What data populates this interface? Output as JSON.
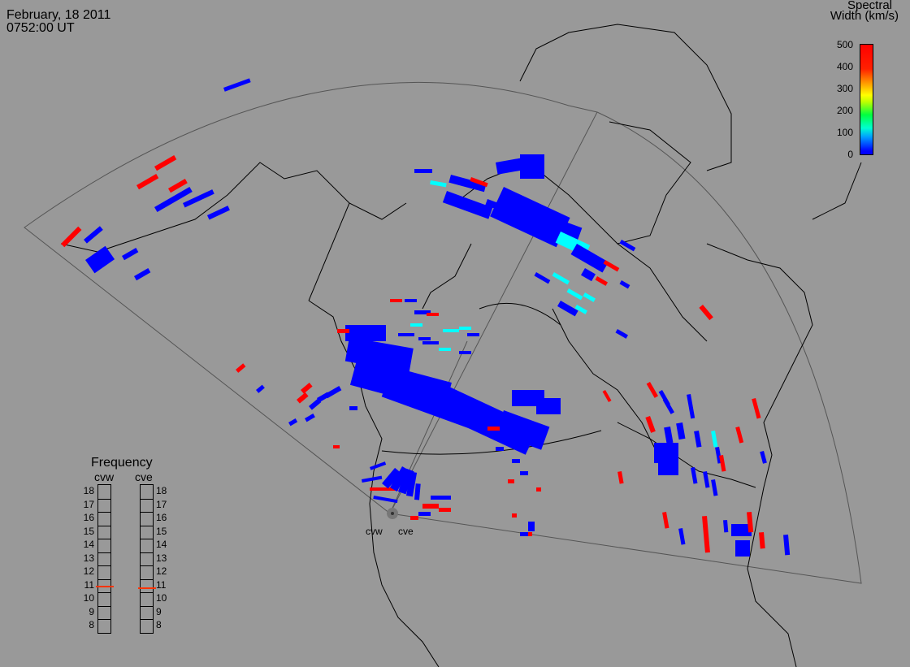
{
  "header": {
    "date": "February, 18 2011",
    "time": "0752:00 UT"
  },
  "colorbar": {
    "title_line1": "Spectral",
    "title_line2": "Width (km/s)",
    "ticks": [
      "500",
      "400",
      "300",
      "200",
      "100",
      "0"
    ],
    "range": [
      0,
      500
    ],
    "colors": [
      "#0000ff",
      "#00ffd0",
      "#00ff40",
      "#ffff00",
      "#ff9000",
      "#ff0000"
    ]
  },
  "radars": {
    "west_label": "cvw",
    "east_label": "cve"
  },
  "frequency": {
    "title": "Frequency",
    "col_west": "cvw",
    "col_east": "cve",
    "levels": [
      "18",
      "17",
      "16",
      "15",
      "14",
      "13",
      "12",
      "11",
      "10",
      "9",
      "8"
    ],
    "cvw_value": 10.9,
    "cve_value": 10.8,
    "marker_color": "#ff3300"
  },
  "map": {
    "background": "#999999",
    "scatter_colors": {
      "low": "#0000ff",
      "mid": "#00ffff",
      "high": "#ff0000"
    }
  }
}
